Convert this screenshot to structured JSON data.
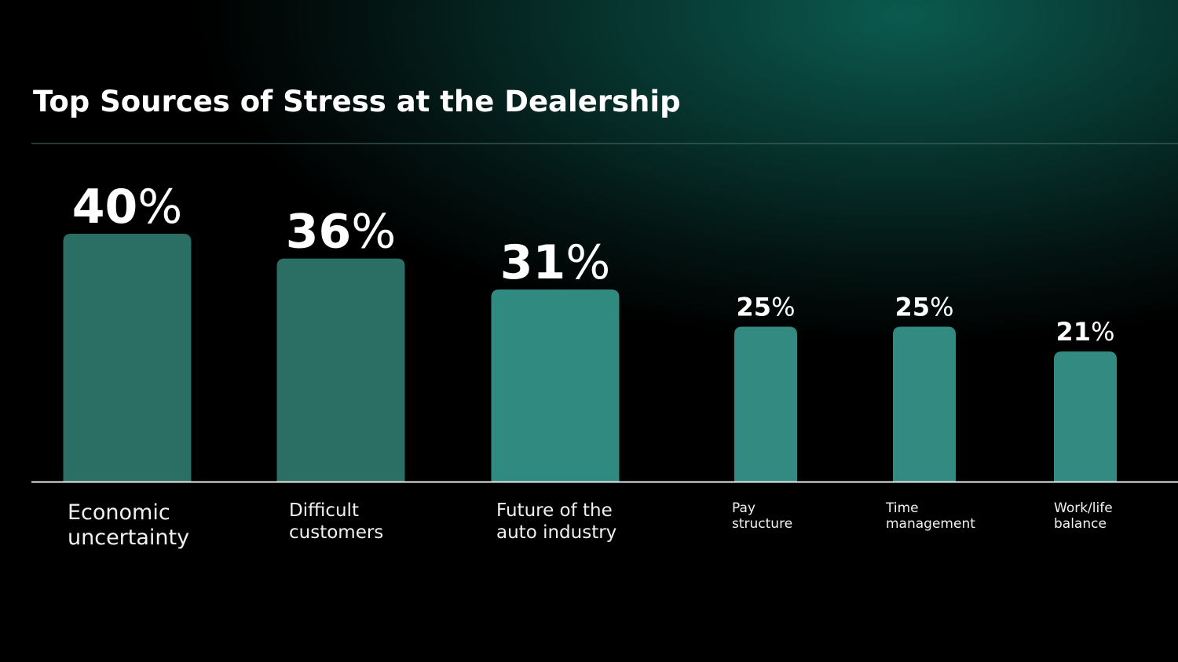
{
  "chart_data": {
    "type": "bar",
    "title": "Top Sources of Stress at the Dealership",
    "categories": [
      "Economic uncertainty",
      "Difficult customers",
      "Future of the auto industry",
      "Pay structure",
      "Time management",
      "Work/life balance"
    ],
    "values": [
      40,
      36,
      31,
      25,
      25,
      21
    ],
    "value_labels": [
      "40%",
      "36%",
      "31%",
      "25%",
      "25%",
      "21%"
    ],
    "colors": [
      "#2b6e64",
      "#2b6e64",
      "#318a80",
      "#328a80",
      "#328a80",
      "#328a80"
    ]
  }
}
